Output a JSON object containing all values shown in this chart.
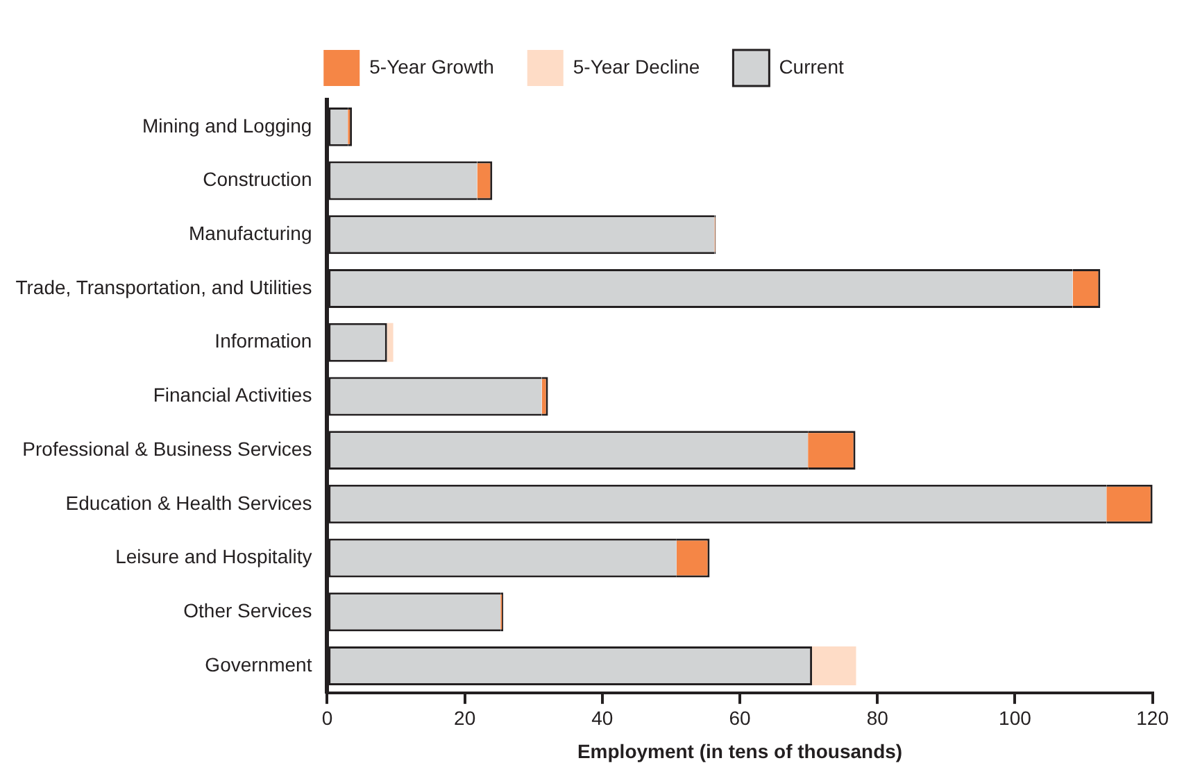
{
  "chart_data": {
    "type": "bar",
    "orientation": "horizontal",
    "stacked": true,
    "xlabel": "Employment (in tens of thousands)",
    "categories": [
      "Mining and Logging",
      "Construction",
      "Manufacturing",
      "Trade, Transportation, and Utilities",
      "Information",
      "Financial Activities",
      "Professional & Business Services",
      "Education & Health Services",
      "Leisure and Hospitality",
      "Other Services",
      "Government"
    ],
    "series": [
      {
        "name": "Current",
        "color": "#d1d3d4",
        "values": [
          3.0,
          21.8,
          56.3,
          108.4,
          8.7,
          31.2,
          69.9,
          113.3,
          50.8,
          25.2,
          70.5
        ]
      },
      {
        "name": "5-Year Growth",
        "color": "#f58646",
        "values": [
          0.6,
          2.2,
          0.2,
          4.0,
          null,
          0.9,
          6.9,
          6.7,
          4.8,
          0.4,
          null
        ]
      },
      {
        "name": "5-Year Decline",
        "color": "#fedcc6",
        "values": [
          null,
          null,
          null,
          null,
          0.9,
          null,
          null,
          null,
          null,
          null,
          6.4
        ]
      }
    ],
    "xlim": [
      0,
      120
    ],
    "xticks": [
      0,
      20,
      40,
      60,
      80,
      100,
      120
    ],
    "grid": false,
    "legend": "top"
  }
}
